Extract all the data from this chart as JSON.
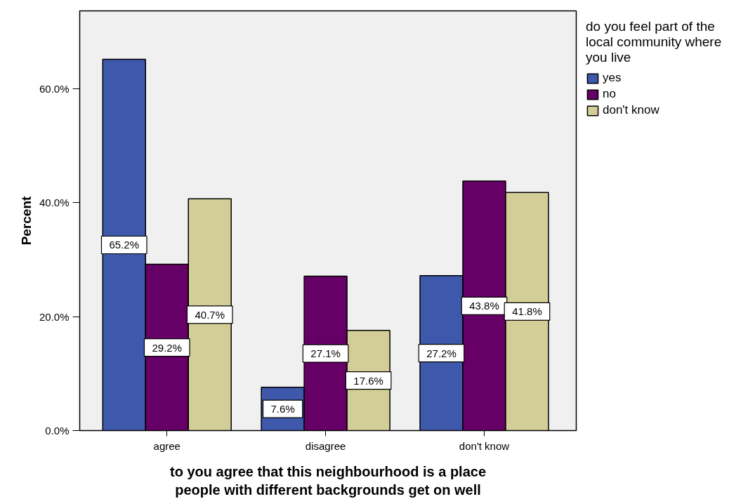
{
  "chart_data": {
    "type": "bar",
    "categories": [
      "agree",
      "disagree",
      "don't know"
    ],
    "series": [
      {
        "name": "yes",
        "color": "#3e58ab",
        "values": [
          65.2,
          7.6,
          27.2
        ],
        "value_labels": [
          "65.2%",
          "7.6%",
          "27.2%"
        ]
      },
      {
        "name": "no",
        "color": "#660066",
        "values": [
          29.2,
          27.1,
          43.8
        ],
        "value_labels": [
          "29.2%",
          "27.1%",
          "43.8%"
        ]
      },
      {
        "name": "don't know",
        "color": "#d3ce98",
        "values": [
          40.7,
          17.6,
          41.8
        ],
        "value_labels": [
          "40.7%",
          "17.6%",
          "41.8%"
        ]
      }
    ],
    "ylim": [
      0,
      73.7
    ],
    "yticks": [
      {
        "value": 0,
        "label": "0.0%"
      },
      {
        "value": 20,
        "label": "20.0%"
      },
      {
        "value": 40,
        "label": "40.0%"
      },
      {
        "value": 60,
        "label": "60.0%"
      }
    ],
    "ylabel": "Percent",
    "xlabel": "to you agree that this neighbourhood is a place people with different backgrounds get on well",
    "legend_title": "do you feel part of the local community where you live",
    "legend": "right"
  }
}
